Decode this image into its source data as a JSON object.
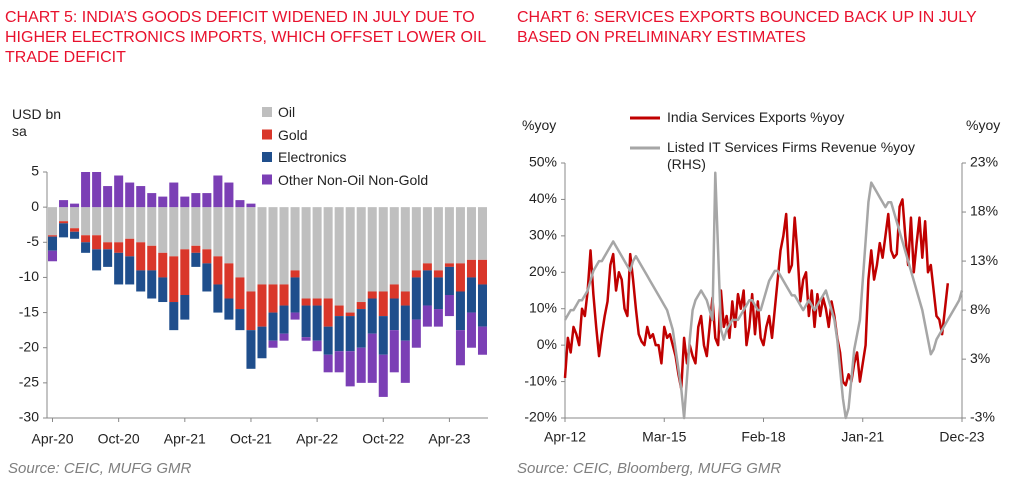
{
  "chart_data": [
    {
      "type": "bar",
      "title": "CHART 5: INDIA’S GOODS DEFICIT WIDENED IN JULY DUE TO HIGHER ELECTRONICS IMPORTS, WHICH OFFSET LOWER OIL TRADE DEFICIT",
      "y_label": "USD bn sa",
      "source": "Source: CEIC, MUFG GMR",
      "categories": [
        "Apr-20",
        null,
        null,
        null,
        null,
        null,
        "Oct-20",
        null,
        null,
        null,
        null,
        null,
        "Apr-21",
        null,
        null,
        null,
        null,
        null,
        "Oct-21",
        null,
        null,
        null,
        null,
        null,
        "Apr-22",
        null,
        null,
        null,
        null,
        null,
        "Oct-22",
        null,
        null,
        null,
        null,
        null,
        "Apr-23",
        null,
        null,
        null
      ],
      "series": [
        {
          "name": "Oil",
          "color": "#bfbfbf",
          "values": [
            -4,
            -2,
            -3,
            -4,
            -4,
            -5,
            -5,
            -4.5,
            -5,
            -5.5,
            -6.5,
            -7,
            -6,
            -5.5,
            -6,
            -7,
            -8,
            -10,
            -12,
            -11,
            -11,
            -11,
            -9,
            -13,
            -13,
            -13,
            -14,
            -15,
            -13.5,
            -12,
            -12,
            -11,
            -12,
            -9,
            -8,
            -9,
            -8,
            -8,
            -7.5,
            -7.5
          ]
        },
        {
          "name": "Gold",
          "color": "#d9372a",
          "values": [
            -0.2,
            -0.3,
            -0.5,
            -1,
            -2,
            -1,
            -1.5,
            -2.5,
            -4,
            -3.5,
            -3.5,
            -6.5,
            -6.5,
            -1,
            -2,
            -4,
            -5,
            -4.5,
            -5.5,
            -6,
            -4,
            -3,
            -1,
            -1,
            -1,
            -4,
            -1.5,
            -0.5,
            -1,
            -1,
            -3.5,
            -2,
            -2,
            -1,
            -1,
            -1,
            -0.5,
            -4,
            -2.5,
            -3.5
          ]
        },
        {
          "name": "Electronics",
          "color": "#1f4e8c",
          "values": [
            -2,
            -2,
            -1,
            -1.5,
            -3,
            -2.5,
            -4.5,
            -4,
            -3,
            -4,
            -3.5,
            -4,
            -3.5,
            -2,
            -4,
            -4,
            -3,
            -3,
            -5.5,
            -4.5,
            -4,
            -4,
            -5,
            -4.5,
            -5,
            -4,
            -5,
            -5,
            -5.5,
            -5,
            -5.5,
            -4.5,
            -5,
            -6,
            -5,
            -4.5,
            -4,
            -5.5,
            -5,
            -6
          ]
        },
        {
          "name": "Other Non-Oil Non-Gold",
          "color": "#7b3fb5",
          "values": [
            -1.5,
            1,
            0.5,
            5,
            5,
            3,
            4.5,
            3.5,
            3,
            2,
            1.5,
            3.5,
            1.5,
            2,
            2,
            4.5,
            3.5,
            1,
            0.5,
            0,
            -1,
            -1,
            -1,
            -0.5,
            -1.5,
            -2.5,
            -3,
            -5,
            -5,
            -7,
            -6,
            -6,
            -6,
            -4,
            -3,
            -2.5,
            -3,
            -5,
            -5,
            -4
          ]
        }
      ],
      "ylim": [
        -30,
        5
      ],
      "yticks": [
        5,
        0,
        -5,
        -10,
        -15,
        -20,
        -25,
        -30
      ]
    },
    {
      "type": "line",
      "title": "CHART 6: SERVICES EXPORTS BOUNCED BACK UP IN JULY BASED ON PRELIMINARY ESTIMATES",
      "y_label": "%yoy",
      "y2_label": "%yoy",
      "source": "Source: CEIC, Bloomberg, MUFG GMR",
      "categories": [
        "Apr-12",
        null,
        null,
        null,
        null,
        null,
        null,
        null,
        null,
        null,
        null,
        null,
        null,
        null,
        null,
        null,
        null,
        null,
        null,
        null,
        null,
        null,
        null,
        null,
        null,
        null,
        null,
        null,
        null,
        null,
        null,
        null,
        null,
        null,
        null,
        "Mar-15",
        null,
        null,
        null,
        null,
        null,
        null,
        null,
        null,
        null,
        null,
        null,
        null,
        null,
        null,
        null,
        null,
        null,
        null,
        null,
        null,
        null,
        null,
        null,
        null,
        null,
        null,
        null,
        null,
        null,
        null,
        null,
        null,
        null,
        null,
        "Feb-18",
        null,
        null,
        null,
        null,
        null,
        null,
        null,
        null,
        null,
        null,
        null,
        null,
        null,
        null,
        null,
        null,
        null,
        null,
        null,
        null,
        null,
        null,
        null,
        null,
        null,
        null,
        null,
        null,
        null,
        null,
        null,
        null,
        null,
        null,
        "Jan-21",
        null,
        null,
        null,
        null,
        null,
        null,
        null,
        null,
        null,
        null,
        null,
        null,
        null,
        null,
        null,
        null,
        null,
        null,
        null,
        null,
        null,
        null,
        null,
        null,
        null,
        null,
        null,
        null,
        null,
        null,
        null,
        null,
        null,
        null,
        "Dec-23"
      ],
      "series": [
        {
          "name": "India Services Exports %yoy",
          "color": "#c00000",
          "values": [
            -9,
            2,
            -2,
            5,
            3,
            0,
            10,
            8,
            15,
            26,
            14,
            5,
            -3,
            3,
            8,
            12,
            22,
            25,
            15,
            20,
            18,
            10,
            8,
            25,
            18,
            10,
            3,
            1,
            0,
            5,
            2,
            3,
            0,
            0,
            -5,
            5,
            2,
            3,
            0,
            -3,
            -8,
            -12,
            2,
            -5,
            0,
            -3,
            -5,
            5,
            8,
            0,
            -3,
            5,
            13,
            2,
            0,
            15,
            5,
            8,
            2,
            12,
            5,
            14,
            10,
            15,
            0,
            5,
            14,
            3,
            12,
            2,
            0,
            5,
            8,
            2,
            10,
            18,
            26,
            30,
            36,
            20,
            22,
            35,
            25,
            12,
            18,
            20,
            8,
            15,
            5,
            14,
            8,
            13,
            10,
            5,
            12,
            8,
            2,
            -2,
            -10,
            -11,
            -8,
            -10,
            -5,
            -2,
            -10,
            -5,
            0,
            18,
            26,
            18,
            22,
            28,
            24,
            30,
            36,
            26,
            24,
            25,
            38,
            40,
            30,
            22,
            35,
            20,
            28,
            35,
            24,
            34,
            20,
            22,
            15,
            8,
            7,
            3,
            10,
            17,
            null,
            null,
            null,
            null,
            null
          ]
        },
        {
          "name": "Listed IT Services Firms Revenue %yoy (RHS)",
          "color": "#a6a6a6",
          "axis": "y2",
          "values": [
            7,
            7.5,
            8,
            8,
            8.5,
            9,
            9,
            9.5,
            10,
            11,
            12,
            12.5,
            13,
            13,
            13.5,
            14,
            14.5,
            15,
            14.5,
            14,
            13.5,
            13,
            12.5,
            12,
            13,
            13.5,
            13,
            12.5,
            12,
            11.5,
            11,
            10.5,
            10,
            9.5,
            9,
            8.5,
            8,
            7,
            6,
            4,
            2,
            0,
            -3,
            1,
            5,
            8,
            9,
            9.5,
            10,
            9.5,
            9,
            8,
            7,
            22,
            14,
            6,
            5,
            6,
            6.5,
            7,
            7,
            7,
            7.5,
            8,
            8.5,
            9,
            9,
            8.5,
            8,
            8,
            9,
            10,
            11,
            11.5,
            12,
            12,
            11.5,
            11,
            10.5,
            10,
            9.5,
            9.5,
            9,
            8.5,
            8,
            8.5,
            9,
            8.5,
            8,
            8.5,
            9,
            9.5,
            10,
            9,
            8,
            7,
            5,
            2,
            -1,
            -3,
            -2,
            1,
            4,
            5.5,
            7,
            11,
            15,
            19,
            21,
            20.5,
            20,
            19.5,
            19,
            18.5,
            19,
            19,
            18,
            17,
            16,
            15,
            14,
            13,
            12,
            11,
            10,
            9,
            8,
            6.5,
            5,
            3.5,
            4,
            5,
            5.5,
            6,
            6.5,
            7,
            7.5,
            8,
            8.5,
            9,
            10
          ]
        }
      ],
      "ylim": [
        -20,
        50
      ],
      "yticks": [
        {
          "value": 50,
          "label": "50%"
        },
        {
          "value": 40,
          "label": "40%"
        },
        {
          "value": 30,
          "label": "30%"
        },
        {
          "value": 20,
          "label": "20%"
        },
        {
          "value": 10,
          "label": "10%"
        },
        {
          "value": 0,
          "label": "0%"
        },
        {
          "value": -10,
          "label": "-10%"
        },
        {
          "value": -20,
          "label": "-20%"
        }
      ],
      "y2lim": [
        -3,
        23
      ],
      "y2ticks": [
        {
          "value": 23,
          "label": "23%"
        },
        {
          "value": 18,
          "label": "18%"
        },
        {
          "value": 13,
          "label": "13%"
        },
        {
          "value": 8,
          "label": "8%"
        },
        {
          "value": 3,
          "label": "3%"
        },
        {
          "value": -3,
          "label": "-3%"
        }
      ]
    }
  ]
}
